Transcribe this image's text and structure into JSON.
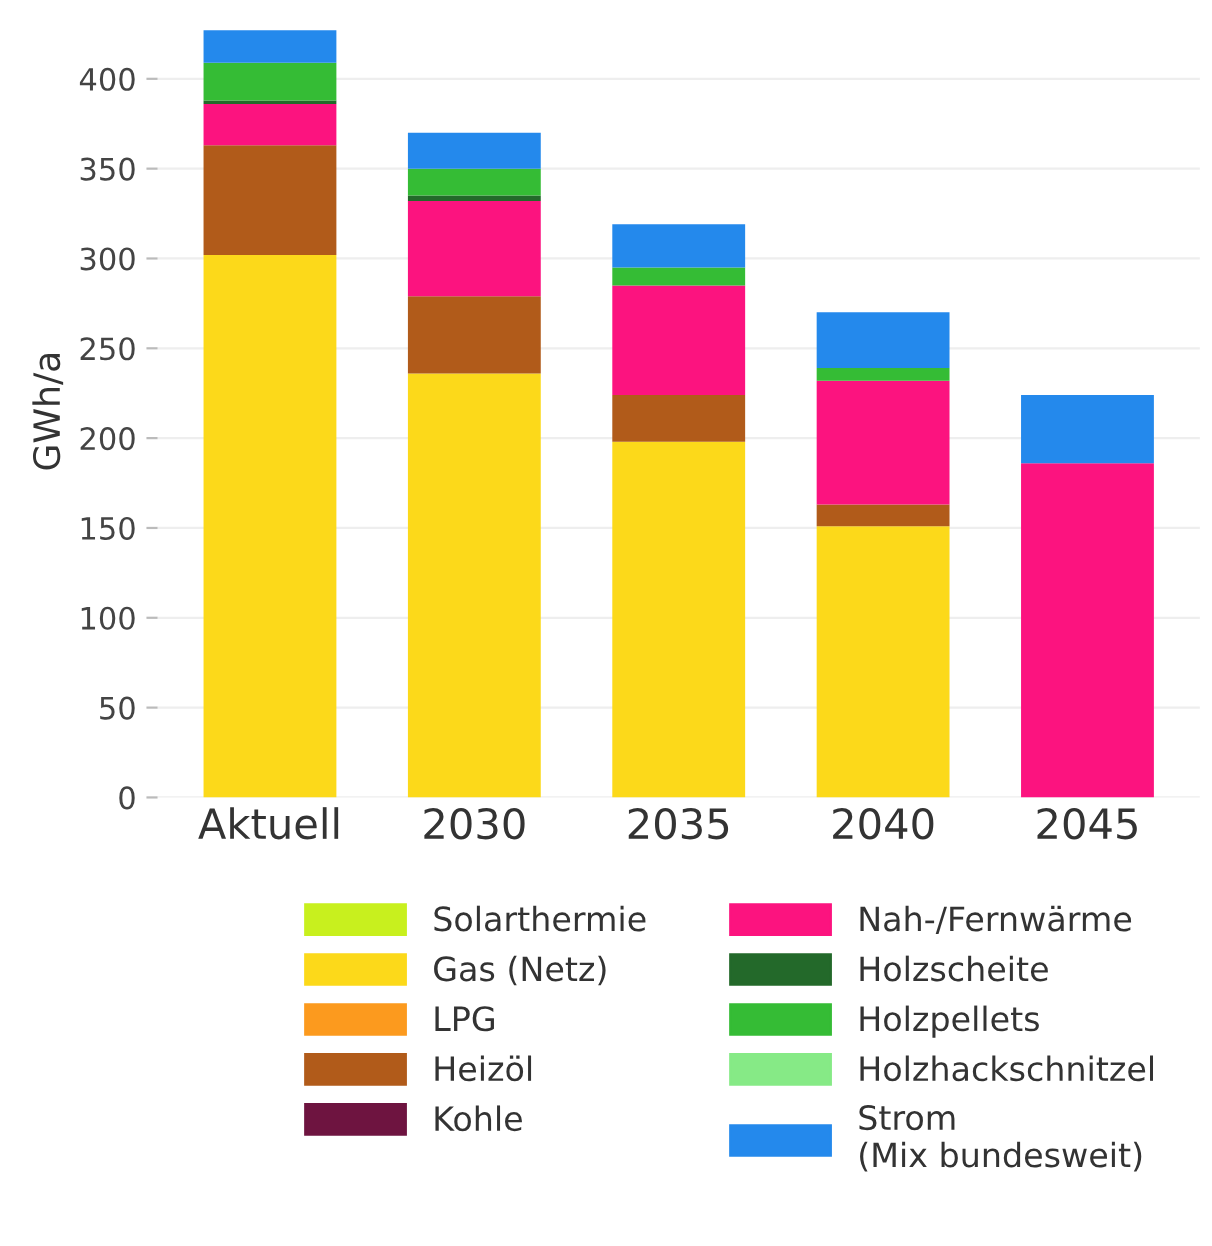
{
  "chart_data": {
    "type": "bar",
    "stacked": true,
    "ylabel": "GWh/a",
    "categories": [
      "Aktuell",
      "2030",
      "2035",
      "2040",
      "2045"
    ],
    "series": [
      {
        "name": "Solarthermie",
        "color": "#c8f01e",
        "values": [
          0,
          0,
          0,
          0,
          0
        ]
      },
      {
        "name": "Gas (Netz)",
        "color": "#fcd91a",
        "values": [
          302,
          236,
          198,
          151,
          0
        ]
      },
      {
        "name": "LPG",
        "color": "#fc9a1e",
        "values": [
          0,
          0,
          0,
          0,
          0
        ]
      },
      {
        "name": "Heizöl",
        "color": "#b15b1a",
        "values": [
          61,
          43,
          26,
          12,
          0
        ]
      },
      {
        "name": "Kohle",
        "color": "#6e1440",
        "values": [
          0,
          0,
          0,
          0,
          0
        ]
      },
      {
        "name": "Nah-/Fernwärme",
        "color": "#fc137f",
        "values": [
          23,
          53,
          61,
          69,
          186
        ]
      },
      {
        "name": "Holzscheite",
        "color": "#23692a",
        "values": [
          2,
          3,
          0,
          0,
          0
        ]
      },
      {
        "name": "Holzpellets",
        "color": "#35bc35",
        "values": [
          21,
          15,
          10,
          7,
          0
        ]
      },
      {
        "name": "Holzhackschnitzel",
        "color": "#86ea86",
        "values": [
          0,
          0,
          0,
          0,
          0
        ]
      },
      {
        "name": "Strom\n(Mix bundesweit)",
        "color": "#2489ec",
        "values": [
          18,
          20,
          24,
          31,
          38
        ]
      }
    ],
    "ylim": [
      0,
      430
    ],
    "yticks": [
      0,
      50,
      100,
      150,
      200,
      250,
      300,
      350,
      400
    ],
    "grid": "y",
    "legend": "bottom"
  }
}
